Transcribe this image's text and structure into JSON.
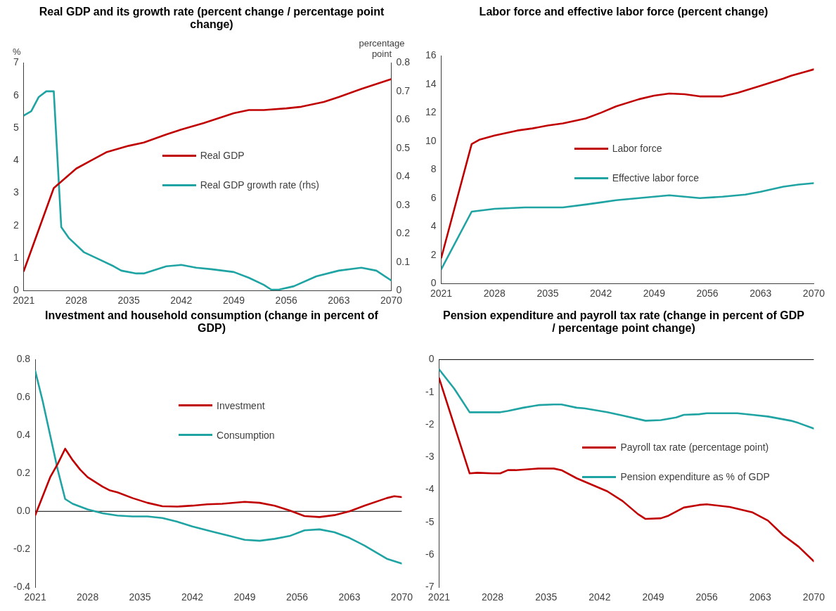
{
  "chart_data": [
    {
      "type": "line",
      "title": "Real GDP and its growth rate (percent change / percentage point change)",
      "ylabel": "%",
      "y2label": "percentage point",
      "xlim": [
        2021,
        2070
      ],
      "xticks": [
        2021,
        2028,
        2035,
        2042,
        2049,
        2056,
        2063,
        2070
      ],
      "ylim": [
        0,
        7
      ],
      "yticks": [
        0,
        1,
        2,
        3,
        4,
        5,
        6,
        7
      ],
      "y2lim": [
        0,
        0.8
      ],
      "y2ticks": [
        0,
        0.1,
        0.2,
        0.3,
        0.4,
        0.5,
        0.6,
        0.7,
        0.8
      ],
      "grid": false,
      "legend": "center",
      "marker": "none",
      "line_style": "solid",
      "series": [
        {
          "name": "Real GDP",
          "color": "#c00000",
          "x": [
            2021,
            2025,
            2026,
            2028,
            2030,
            2032,
            2035,
            2037,
            2040,
            2042,
            2045,
            2047,
            2049,
            2051,
            2053,
            2056,
            2058,
            2061,
            2063,
            2066,
            2068,
            2070
          ],
          "values": [
            0.6,
            3.15,
            3.35,
            3.75,
            4.0,
            4.25,
            4.45,
            4.55,
            4.8,
            4.95,
            5.15,
            5.3,
            5.45,
            5.55,
            5.55,
            5.6,
            5.65,
            5.8,
            5.95,
            6.2,
            6.35,
            6.5
          ]
        },
        {
          "name": "Real GDP growth rate (rhs)",
          "color": "#1fa3a3",
          "axis": "y2",
          "x": [
            2021,
            2022,
            2023,
            2024,
            2025,
            2026,
            2027,
            2029,
            2031,
            2033,
            2034,
            2036,
            2037,
            2040,
            2042,
            2044,
            2046,
            2049,
            2051,
            2053,
            2054,
            2055,
            2057,
            2060,
            2063,
            2066,
            2068,
            2070
          ],
          "values": [
            0.615,
            0.63,
            0.68,
            0.7,
            0.7,
            0.223,
            0.185,
            0.135,
            0.11,
            0.085,
            0.07,
            0.06,
            0.06,
            0.085,
            0.09,
            0.08,
            0.075,
            0.065,
            0.045,
            0.02,
            0.003,
            0.003,
            0.015,
            0.05,
            0.07,
            0.08,
            0.07,
            0.035
          ]
        }
      ]
    },
    {
      "type": "line",
      "title": "Labor force and effective labor force (percent change)",
      "xlim": [
        2021,
        2070
      ],
      "xticks": [
        2021,
        2028,
        2035,
        2042,
        2049,
        2056,
        2063,
        2070
      ],
      "ylim": [
        0,
        16
      ],
      "yticks": [
        0,
        2,
        4,
        6,
        8,
        10,
        12,
        14,
        16
      ],
      "grid": false,
      "legend": "center",
      "marker": "none",
      "line_style": "solid",
      "series": [
        {
          "name": "Labor force",
          "color": "#c00000",
          "x": [
            2021,
            2025,
            2026,
            2028,
            2031,
            2033,
            2035,
            2037,
            2040,
            2042,
            2044,
            2047,
            2049,
            2051,
            2053,
            2055,
            2058,
            2060,
            2063,
            2066,
            2067,
            2069,
            2070
          ],
          "values": [
            1.8,
            9.8,
            10.1,
            10.4,
            10.75,
            10.9,
            11.1,
            11.25,
            11.6,
            12.0,
            12.45,
            12.95,
            13.2,
            13.35,
            13.3,
            13.15,
            13.15,
            13.4,
            13.9,
            14.4,
            14.6,
            14.9,
            15.05
          ]
        },
        {
          "name": "Effective labor force",
          "color": "#1fa3a3",
          "x": [
            2021,
            2025,
            2028,
            2030,
            2032,
            2037,
            2040,
            2042,
            2044,
            2047,
            2051,
            2053,
            2055,
            2058,
            2061,
            2063,
            2066,
            2068,
            2070
          ],
          "values": [
            1.0,
            5.05,
            5.25,
            5.3,
            5.35,
            5.35,
            5.55,
            5.7,
            5.85,
            6.0,
            6.2,
            6.1,
            6.0,
            6.1,
            6.25,
            6.45,
            6.8,
            6.95,
            7.05
          ]
        }
      ]
    },
    {
      "type": "line",
      "title": "Investment and household consumption (change in percent of GDP)",
      "xlim": [
        2021,
        2070
      ],
      "xticks": [
        2021,
        2028,
        2035,
        2042,
        2049,
        2056,
        2063,
        2070
      ],
      "ylim": [
        -0.4,
        0.8
      ],
      "yticks": [
        -0.4,
        -0.2,
        {
          "value": 0,
          "label": "0.0"
        },
        0.2,
        0.4,
        0.6,
        0.8
      ],
      "grid": false,
      "legend": "top",
      "marker": "none",
      "line_style": "solid",
      "ref_lines": [
        {
          "axis": "y",
          "value": 0,
          "color": "#000000"
        }
      ],
      "series": [
        {
          "name": "Investment",
          "color": "#c00000",
          "x": [
            2021,
            2022,
            2023,
            2024,
            2025,
            2026,
            2027,
            2028,
            2030,
            2031,
            2032,
            2034,
            2036,
            2038,
            2040,
            2042,
            2044,
            2046,
            2049,
            2051,
            2053,
            2055,
            2057,
            2059,
            2061,
            2063,
            2065,
            2068,
            2069,
            2070
          ],
          "values": [
            -0.02,
            0.08,
            0.18,
            0.25,
            0.33,
            0.27,
            0.22,
            0.18,
            0.13,
            0.11,
            0.1,
            0.07,
            0.045,
            0.027,
            0.025,
            0.03,
            0.037,
            0.04,
            0.05,
            0.045,
            0.03,
            0.005,
            -0.025,
            -0.03,
            -0.02,
            0.0,
            0.03,
            0.07,
            0.08,
            0.075
          ]
        },
        {
          "name": "Consumption",
          "color": "#1fa3a3",
          "x": [
            2021,
            2022,
            2023,
            2024,
            2025,
            2026,
            2028,
            2030,
            2032,
            2034,
            2036,
            2038,
            2040,
            2042,
            2045,
            2047,
            2049,
            2051,
            2053,
            2055,
            2057,
            2059,
            2061,
            2063,
            2065,
            2068,
            2070
          ],
          "values": [
            0.74,
            0.58,
            0.4,
            0.22,
            0.065,
            0.04,
            0.01,
            -0.01,
            -0.022,
            -0.027,
            -0.027,
            -0.035,
            -0.055,
            -0.08,
            -0.11,
            -0.13,
            -0.15,
            -0.155,
            -0.145,
            -0.13,
            -0.1,
            -0.095,
            -0.11,
            -0.14,
            -0.18,
            -0.25,
            -0.275
          ]
        }
      ]
    },
    {
      "type": "line",
      "title": "Pension expenditure and payroll tax rate (change in percent of GDP / percentage point change)",
      "xlim": [
        2021,
        2070
      ],
      "xticks": [
        2021,
        2028,
        2035,
        2042,
        2049,
        2056,
        2063,
        2070
      ],
      "ylim": [
        -7,
        0
      ],
      "yticks": [
        -7,
        -6,
        -5,
        -4,
        -3,
        -2,
        -1,
        0
      ],
      "grid": false,
      "legend": "center right",
      "marker": "none",
      "line_style": "solid",
      "ref_lines": [
        {
          "axis": "y",
          "value": 0,
          "color": "#000000"
        }
      ],
      "series": [
        {
          "name": "Payroll tax rate (percentage point)",
          "color": "#c00000",
          "x": [
            2021,
            2025,
            2026,
            2028,
            2029,
            2030,
            2031,
            2034,
            2036,
            2037,
            2039,
            2041,
            2043,
            2045,
            2047,
            2048,
            2050,
            2051,
            2053,
            2055,
            2056,
            2059,
            2062,
            2064,
            2066,
            2068,
            2070
          ],
          "values": [
            -0.57,
            -3.5,
            -3.48,
            -3.5,
            -3.5,
            -3.4,
            -3.4,
            -3.35,
            -3.35,
            -3.4,
            -3.65,
            -3.85,
            -4.05,
            -4.35,
            -4.75,
            -4.9,
            -4.88,
            -4.8,
            -4.55,
            -4.47,
            -4.45,
            -4.53,
            -4.7,
            -4.95,
            -5.4,
            -5.75,
            -6.2
          ]
        },
        {
          "name": "Pension expenditure as % of GDP",
          "color": "#1fa3a3",
          "x": [
            2021,
            2023,
            2025,
            2029,
            2030,
            2032,
            2034,
            2036,
            2037,
            2039,
            2040,
            2043,
            2045,
            2048,
            2050,
            2052,
            2053,
            2055,
            2056,
            2060,
            2062,
            2064,
            2067,
            2068,
            2070
          ],
          "values": [
            -0.3,
            -0.9,
            -1.62,
            -1.62,
            -1.58,
            -1.48,
            -1.4,
            -1.38,
            -1.38,
            -1.48,
            -1.5,
            -1.62,
            -1.72,
            -1.88,
            -1.86,
            -1.78,
            -1.7,
            -1.68,
            -1.65,
            -1.65,
            -1.7,
            -1.75,
            -1.88,
            -1.95,
            -2.12
          ]
        }
      ]
    }
  ]
}
